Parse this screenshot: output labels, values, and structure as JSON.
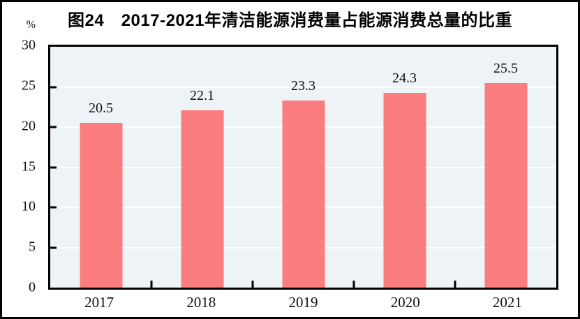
{
  "figure": {
    "title": "图24　2017-2021年清洁能源消费量占能源消费总量的比重",
    "y_unit": "%"
  },
  "colors": {
    "bar": "#fc7d7d",
    "plot_bg": "#edf3f6",
    "grid": "#ffffff",
    "axis": "#000000",
    "text": "#111111"
  },
  "chart_data": {
    "type": "bar",
    "categories": [
      "2017",
      "2018",
      "2019",
      "2020",
      "2021"
    ],
    "values": [
      20.5,
      22.1,
      23.3,
      24.3,
      25.5
    ],
    "labels": [
      "20.5",
      "22.1",
      "23.3",
      "24.3",
      "25.5"
    ],
    "title": "图24　2017-2021年清洁能源消费量占能源消费总量的比重",
    "xlabel": "",
    "ylabel": "%",
    "ylim": [
      0,
      30
    ],
    "yticks": [
      0,
      5,
      10,
      15,
      20,
      25,
      30
    ],
    "grid": true,
    "legend": "none"
  }
}
